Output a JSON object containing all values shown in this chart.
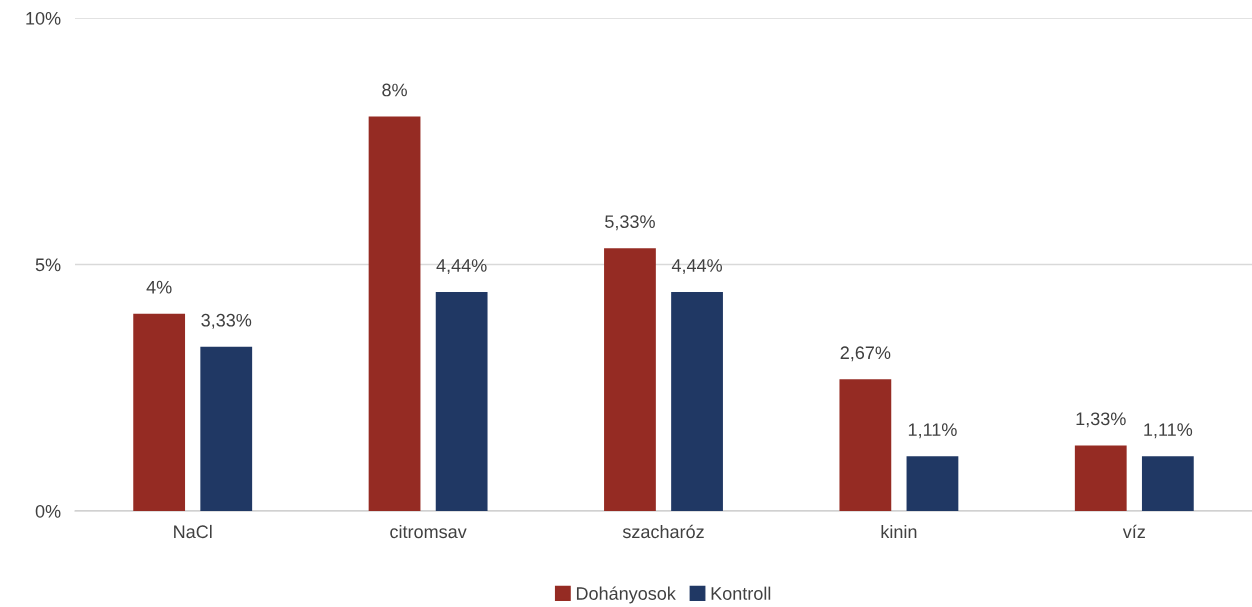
{
  "chart_data": {
    "type": "bar",
    "categories": [
      "NaCl",
      "citromsav",
      "szacharóz",
      "kinin",
      "víz"
    ],
    "series": [
      {
        "name": "Dohányosok",
        "color": "#952b23",
        "values": [
          4,
          8,
          5.33,
          2.67,
          1.33
        ],
        "value_labels": [
          "4%",
          "8%",
          "5,33%",
          "2,67%",
          "1,33%"
        ]
      },
      {
        "name": "Kontroll",
        "color": "#203864",
        "values": [
          3.33,
          4.44,
          4.44,
          1.11,
          1.11
        ],
        "value_labels": [
          "3,33%",
          "4,44%",
          "4,44%",
          "1,11%",
          "1,11%"
        ]
      }
    ],
    "ylim": [
      0,
      10
    ],
    "yticks": [
      {
        "value": 0,
        "label": "0%"
      },
      {
        "value": 5,
        "label": "5%"
      },
      {
        "value": 10,
        "label": "10%"
      }
    ],
    "grid": "y",
    "legend": "bottom"
  }
}
